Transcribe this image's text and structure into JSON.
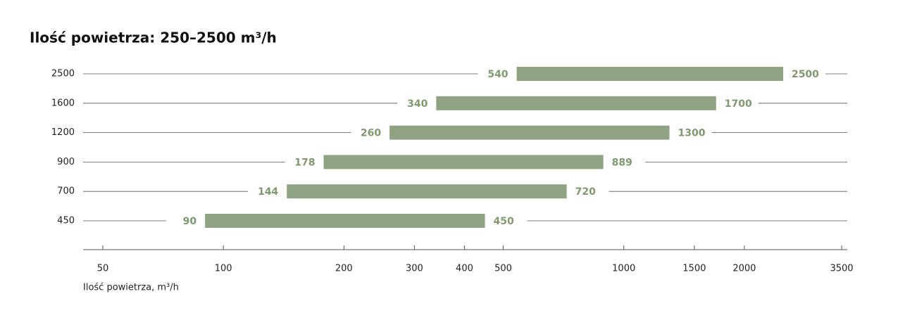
{
  "chart_data": {
    "type": "rangebar",
    "title": "Ilość powietrza: 250–2500 m³/h",
    "x_label": "Ilość powietrza, m³/h",
    "categories": [
      "2500",
      "1600",
      "1200",
      "900",
      "700",
      "450"
    ],
    "values": [
      [
        540,
        2500
      ],
      [
        340,
        1700
      ],
      [
        260,
        1300
      ],
      [
        178,
        889
      ],
      [
        144,
        720
      ],
      [
        90,
        450
      ]
    ],
    "color": "#8fa382",
    "xscale": "log",
    "xlim": [
      45,
      3600
    ],
    "xticks": [
      50,
      100,
      200,
      300,
      400,
      500,
      1000,
      1500,
      2000,
      3500
    ]
  }
}
